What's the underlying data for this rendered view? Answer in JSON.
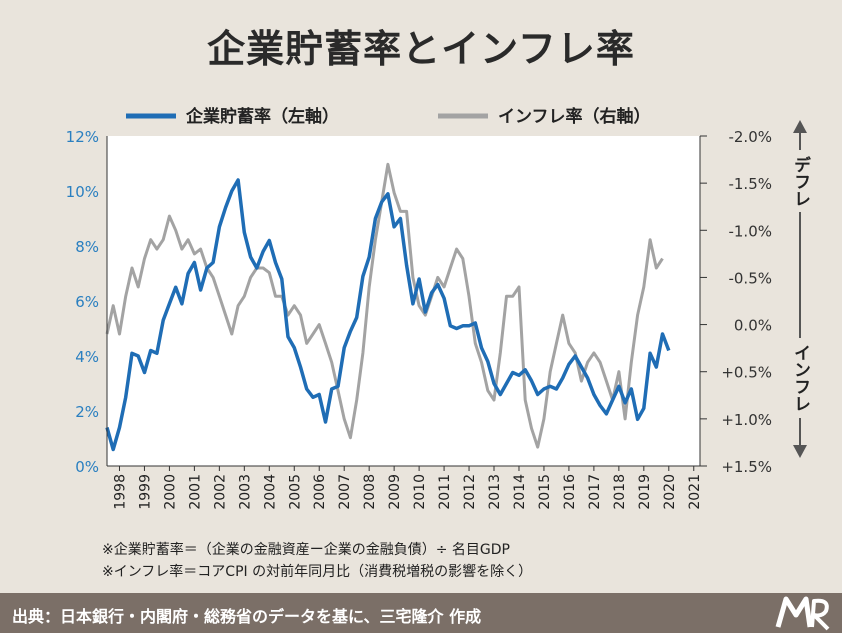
{
  "title": "企業貯蓄率とインフレ率",
  "legend": {
    "savings": "企業貯蓄率（左軸）",
    "inflation": "インフレ率（右軸）"
  },
  "side_labels": {
    "deflation": "デフレ",
    "inflation": "インフレ"
  },
  "notes": [
    "※企業貯蓄率＝（企業の金融資産ー企業の金融負債）÷ 名目GDP",
    "※インフレ率＝コアCPI の対前年同月比（消費税増税の影響を除く）"
  ],
  "footer": "出典：日本銀行・内閣府・総務省のデータを基に、三宅隆介 作成",
  "colors": {
    "savings": "#1f6db5",
    "inflation": "#a3a3a3",
    "footer_bg": "#7b6f67",
    "left_axis_text": "#2a7fc0"
  },
  "chart_data": {
    "type": "line",
    "title": "企業貯蓄率とインフレ率",
    "x_range": [
      1998,
      2021.75
    ],
    "x_tick_labels": [
      "1998",
      "1999",
      "2000",
      "2001",
      "2002",
      "2003",
      "2004",
      "2005",
      "2006",
      "2007",
      "2008",
      "2009",
      "2010",
      "2011",
      "2012",
      "2013",
      "2014",
      "2015",
      "2016",
      "2017",
      "2018",
      "2019",
      "2020",
      "2021"
    ],
    "left_axis": {
      "ticks": [
        "0%",
        "2%",
        "4%",
        "6%",
        "8%",
        "10%",
        "12%"
      ],
      "ylim": [
        0,
        12
      ],
      "unit": "%"
    },
    "right_axis": {
      "ticks": [
        "-2.0%",
        "-1.5%",
        "-1.0%",
        "-0.5%",
        "0.0%",
        "+0.5%",
        "+1.0%",
        "+1.5%"
      ],
      "ylim": [
        -2.0,
        1.5
      ],
      "reversed": true,
      "unit": "%"
    },
    "series": [
      {
        "name": "企業貯蓄率（左軸）",
        "axis": "left",
        "points": [
          [
            1998.0,
            1.4
          ],
          [
            1998.25,
            0.6
          ],
          [
            1998.5,
            1.4
          ],
          [
            1998.75,
            2.5
          ],
          [
            1999.0,
            4.1
          ],
          [
            1999.25,
            4.0
          ],
          [
            1999.5,
            3.4
          ],
          [
            1999.75,
            4.2
          ],
          [
            2000.0,
            4.1
          ],
          [
            2000.25,
            5.3
          ],
          [
            2000.5,
            5.9
          ],
          [
            2000.75,
            6.5
          ],
          [
            2001.0,
            5.9
          ],
          [
            2001.25,
            7.0
          ],
          [
            2001.5,
            7.4
          ],
          [
            2001.75,
            6.4
          ],
          [
            2002.0,
            7.2
          ],
          [
            2002.25,
            7.4
          ],
          [
            2002.5,
            8.7
          ],
          [
            2002.75,
            9.4
          ],
          [
            2003.0,
            10.0
          ],
          [
            2003.25,
            10.4
          ],
          [
            2003.5,
            8.5
          ],
          [
            2003.75,
            7.6
          ],
          [
            2004.0,
            7.2
          ],
          [
            2004.25,
            7.8
          ],
          [
            2004.5,
            8.2
          ],
          [
            2004.75,
            7.4
          ],
          [
            2005.0,
            6.8
          ],
          [
            2005.25,
            4.7
          ],
          [
            2005.5,
            4.3
          ],
          [
            2005.75,
            3.6
          ],
          [
            2006.0,
            2.8
          ],
          [
            2006.25,
            2.5
          ],
          [
            2006.5,
            2.6
          ],
          [
            2006.75,
            1.6
          ],
          [
            2007.0,
            2.8
          ],
          [
            2007.25,
            2.9
          ],
          [
            2007.5,
            4.3
          ],
          [
            2007.75,
            4.9
          ],
          [
            2008.0,
            5.4
          ],
          [
            2008.25,
            6.9
          ],
          [
            2008.5,
            7.6
          ],
          [
            2008.75,
            9.0
          ],
          [
            2009.0,
            9.6
          ],
          [
            2009.25,
            9.9
          ],
          [
            2009.5,
            8.7
          ],
          [
            2009.75,
            9.0
          ],
          [
            2010.0,
            7.3
          ],
          [
            2010.25,
            5.9
          ],
          [
            2010.5,
            6.8
          ],
          [
            2010.75,
            5.6
          ],
          [
            2011.0,
            6.3
          ],
          [
            2011.25,
            6.6
          ],
          [
            2011.5,
            6.1
          ],
          [
            2011.75,
            5.1
          ],
          [
            2012.0,
            5.0
          ],
          [
            2012.25,
            5.1
          ],
          [
            2012.5,
            5.1
          ],
          [
            2012.75,
            5.2
          ],
          [
            2013.0,
            4.3
          ],
          [
            2013.25,
            3.8
          ],
          [
            2013.5,
            3.0
          ],
          [
            2013.75,
            2.6
          ],
          [
            2014.0,
            3.0
          ],
          [
            2014.25,
            3.4
          ],
          [
            2014.5,
            3.3
          ],
          [
            2014.75,
            3.5
          ],
          [
            2015.0,
            3.1
          ],
          [
            2015.25,
            2.6
          ],
          [
            2015.5,
            2.8
          ],
          [
            2015.75,
            2.9
          ],
          [
            2016.0,
            2.8
          ],
          [
            2016.25,
            3.2
          ],
          [
            2016.5,
            3.7
          ],
          [
            2016.75,
            4.0
          ],
          [
            2017.0,
            3.6
          ],
          [
            2017.25,
            3.2
          ],
          [
            2017.5,
            2.6
          ],
          [
            2017.75,
            2.2
          ],
          [
            2018.0,
            1.9
          ],
          [
            2018.25,
            2.4
          ],
          [
            2018.5,
            2.9
          ],
          [
            2018.75,
            2.3
          ],
          [
            2019.0,
            2.8
          ],
          [
            2019.25,
            1.7
          ],
          [
            2019.5,
            2.1
          ],
          [
            2019.75,
            4.1
          ],
          [
            2020.0,
            3.6
          ],
          [
            2020.25,
            4.8
          ],
          [
            2020.5,
            4.2
          ]
        ]
      },
      {
        "name": "インフレ率（右軸）",
        "axis": "right",
        "points": [
          [
            1998.0,
            0.1
          ],
          [
            1998.25,
            -0.2
          ],
          [
            1998.5,
            0.1
          ],
          [
            1998.75,
            -0.3
          ],
          [
            1999.0,
            -0.6
          ],
          [
            1999.25,
            -0.4
          ],
          [
            1999.5,
            -0.7
          ],
          [
            1999.75,
            -0.9
          ],
          [
            2000.0,
            -0.8
          ],
          [
            2000.25,
            -0.9
          ],
          [
            2000.5,
            -1.15
          ],
          [
            2000.75,
            -1.0
          ],
          [
            2001.0,
            -0.8
          ],
          [
            2001.25,
            -0.9
          ],
          [
            2001.5,
            -0.75
          ],
          [
            2001.75,
            -0.8
          ],
          [
            2002.0,
            -0.6
          ],
          [
            2002.25,
            -0.5
          ],
          [
            2002.5,
            -0.3
          ],
          [
            2002.75,
            -0.1
          ],
          [
            2003.0,
            0.1
          ],
          [
            2003.25,
            -0.2
          ],
          [
            2003.5,
            -0.3
          ],
          [
            2003.75,
            -0.5
          ],
          [
            2004.0,
            -0.6
          ],
          [
            2004.25,
            -0.6
          ],
          [
            2004.5,
            -0.55
          ],
          [
            2004.75,
            -0.3
          ],
          [
            2005.0,
            -0.3
          ],
          [
            2005.25,
            -0.1
          ],
          [
            2005.5,
            -0.2
          ],
          [
            2005.75,
            -0.1
          ],
          [
            2006.0,
            0.2
          ],
          [
            2006.25,
            0.1
          ],
          [
            2006.5,
            0.0
          ],
          [
            2006.75,
            0.2
          ],
          [
            2007.0,
            0.4
          ],
          [
            2007.25,
            0.7
          ],
          [
            2007.5,
            1.0
          ],
          [
            2007.75,
            1.2
          ],
          [
            2008.0,
            0.8
          ],
          [
            2008.25,
            0.3
          ],
          [
            2008.5,
            -0.4
          ],
          [
            2008.75,
            -0.9
          ],
          [
            2009.0,
            -1.3
          ],
          [
            2009.25,
            -1.7
          ],
          [
            2009.5,
            -1.4
          ],
          [
            2009.75,
            -1.2
          ],
          [
            2010.0,
            -1.2
          ],
          [
            2010.25,
            -0.5
          ],
          [
            2010.5,
            -0.2
          ],
          [
            2010.75,
            -0.1
          ],
          [
            2011.0,
            -0.3
          ],
          [
            2011.25,
            -0.5
          ],
          [
            2011.5,
            -0.4
          ],
          [
            2011.75,
            -0.6
          ],
          [
            2012.0,
            -0.8
          ],
          [
            2012.25,
            -0.7
          ],
          [
            2012.5,
            -0.3
          ],
          [
            2012.75,
            0.2
          ],
          [
            2013.0,
            0.4
          ],
          [
            2013.25,
            0.7
          ],
          [
            2013.5,
            0.8
          ],
          [
            2013.75,
            0.3
          ],
          [
            2014.0,
            -0.3
          ],
          [
            2014.25,
            -0.3
          ],
          [
            2014.5,
            -0.4
          ],
          [
            2014.75,
            0.8
          ],
          [
            2015.0,
            1.1
          ],
          [
            2015.25,
            1.3
          ],
          [
            2015.5,
            1.0
          ],
          [
            2015.75,
            0.5
          ],
          [
            2016.0,
            0.2
          ],
          [
            2016.25,
            -0.1
          ],
          [
            2016.5,
            0.2
          ],
          [
            2016.75,
            0.3
          ],
          [
            2017.0,
            0.6
          ],
          [
            2017.25,
            0.4
          ],
          [
            2017.5,
            0.3
          ],
          [
            2017.75,
            0.4
          ],
          [
            2018.0,
            0.6
          ],
          [
            2018.25,
            0.8
          ],
          [
            2018.5,
            0.5
          ],
          [
            2018.75,
            1.0
          ],
          [
            2019.0,
            0.4
          ],
          [
            2019.25,
            -0.1
          ],
          [
            2019.5,
            -0.4
          ],
          [
            2019.75,
            -0.9
          ],
          [
            2020.0,
            -0.6
          ],
          [
            2020.25,
            -0.7
          ]
        ]
      }
    ]
  }
}
